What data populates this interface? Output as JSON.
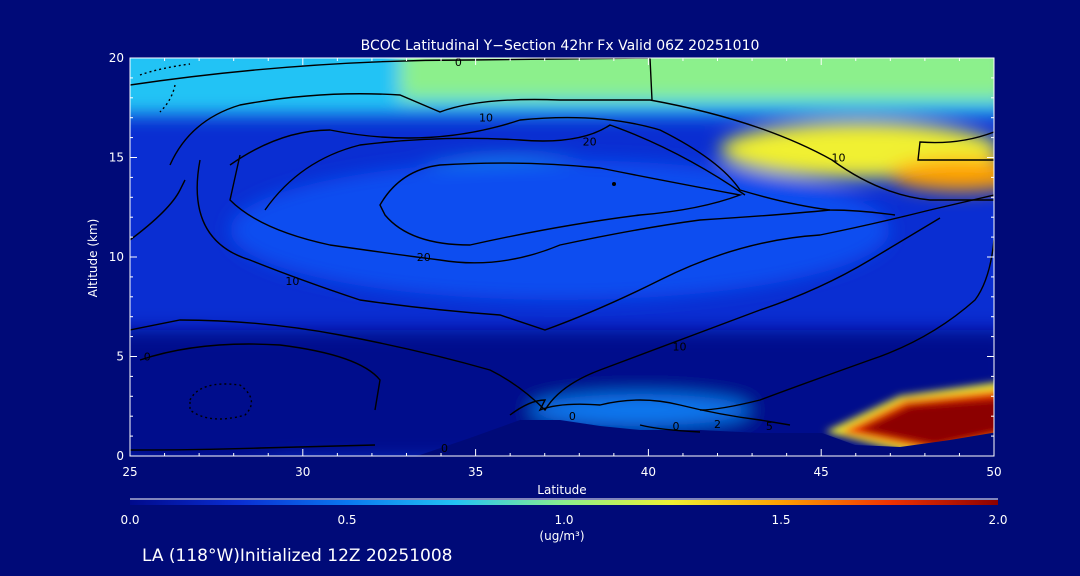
{
  "colors": {
    "background": "#000a78",
    "text": "#ffffff",
    "contour": "#000000",
    "terrain": "#000a78"
  },
  "chart_data": {
    "type": "heatmap",
    "title": "BCOC Latitudinal Y−Section 42hr  Fx Valid 06Z 20251010",
    "xlabel": "Latitude",
    "ylabel": "Altitude (km)",
    "xlim": [
      25,
      50
    ],
    "ylim": [
      0,
      20
    ],
    "x_ticks": [
      25,
      30,
      35,
      40,
      45,
      50
    ],
    "y_ticks": [
      0,
      5,
      10,
      15,
      20
    ],
    "colorbar": {
      "min": 0.0,
      "max": 2.0,
      "ticks": [
        "0.0",
        "0.5",
        "1.0",
        "1.5",
        "2.0"
      ],
      "label": "(ug/m³)",
      "colors": [
        "#000a8c",
        "#0a2ed2",
        "#0a78f0",
        "#23c3f5",
        "#8cf08c",
        "#f0f032",
        "#ffa000",
        "#f03200",
        "#8c0000"
      ]
    },
    "contour_labels": [
      {
        "text": "0",
        "x": 34.5,
        "y": 19.8
      },
      {
        "text": "10",
        "x": 35.3,
        "y": 17.0
      },
      {
        "text": "20",
        "x": 38.3,
        "y": 15.8
      },
      {
        "text": "10",
        "x": 45.5,
        "y": 15.0
      },
      {
        "text": "20",
        "x": 33.5,
        "y": 10.0
      },
      {
        "text": "10",
        "x": 29.7,
        "y": 8.8
      },
      {
        "text": "10",
        "x": 40.9,
        "y": 5.5
      },
      {
        "text": "0",
        "x": 25.5,
        "y": 5.0
      },
      {
        "text": "0",
        "x": 37.8,
        "y": 2.0
      },
      {
        "text": "0",
        "x": 40.8,
        "y": 1.5
      },
      {
        "text": "2",
        "x": 42.0,
        "y": 1.6
      },
      {
        "text": "5",
        "x": 43.5,
        "y": 1.5
      },
      {
        "text": "0",
        "x": 34.1,
        "y": 0.4
      }
    ]
  },
  "footer": {
    "location": "LA (118°W)Initialized 12Z 20251008"
  }
}
